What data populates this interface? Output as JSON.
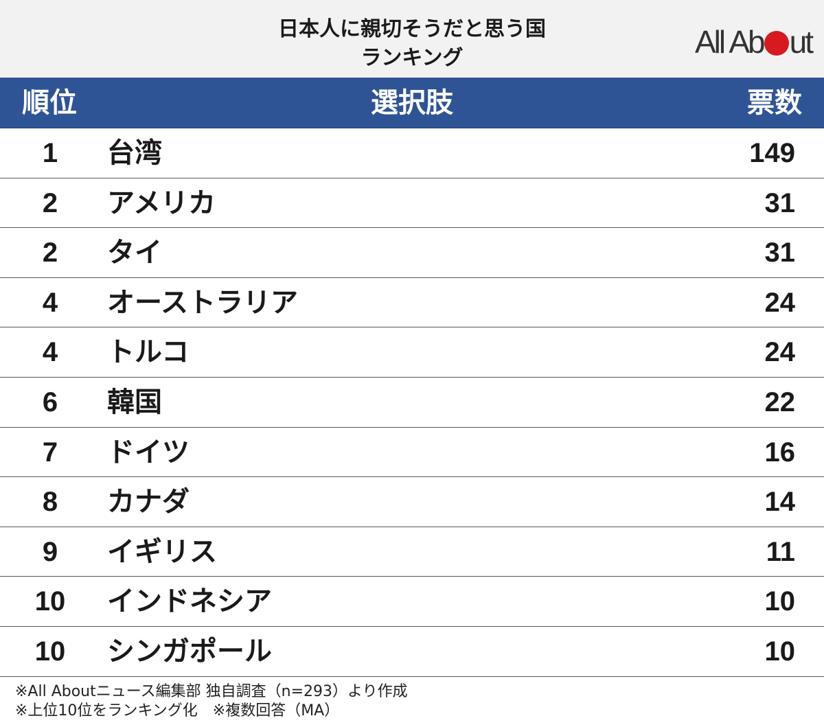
{
  "header": {
    "title_line1": "日本人に親切そうだと思う国",
    "title_line2": "ランキング",
    "logo_left": "All Ab",
    "logo_right": "ut"
  },
  "table": {
    "columns": {
      "rank": "順位",
      "choice": "選択肢",
      "votes": "票数"
    },
    "rows": [
      {
        "rank": "1",
        "name": "台湾",
        "votes": "149"
      },
      {
        "rank": "2",
        "name": "アメリカ",
        "votes": "31"
      },
      {
        "rank": "2",
        "name": "タイ",
        "votes": "31"
      },
      {
        "rank": "4",
        "name": "オーストラリア",
        "votes": "24"
      },
      {
        "rank": "4",
        "name": "トルコ",
        "votes": "24"
      },
      {
        "rank": "6",
        "name": "韓国",
        "votes": "22"
      },
      {
        "rank": "7",
        "name": "ドイツ",
        "votes": "16"
      },
      {
        "rank": "8",
        "name": "カナダ",
        "votes": "14"
      },
      {
        "rank": "9",
        "name": "イギリス",
        "votes": "11"
      },
      {
        "rank": "10",
        "name": "インドネシア",
        "votes": "10"
      },
      {
        "rank": "10",
        "name": "シンガポール",
        "votes": "10"
      }
    ]
  },
  "footer": {
    "note1": "※All Aboutニュース編集部 独自調査（n=293）より作成",
    "note2": "※上位10位をランキング化　※複数回答（MA）"
  },
  "colors": {
    "header_bg": "#2f5496",
    "title_bg": "#f2f2f2",
    "logo_dot": "#d71920"
  }
}
